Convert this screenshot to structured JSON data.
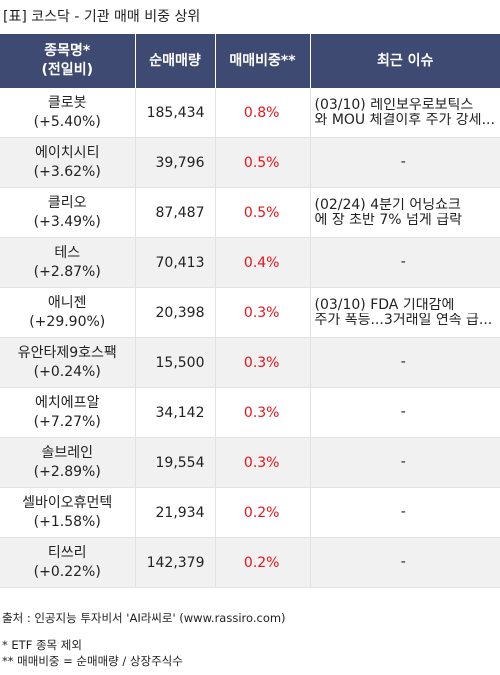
{
  "title": "[표] 코스닥 - 기관 매매 비중 상위",
  "headers": {
    "name_line1": "종목명*",
    "name_line2": "(전일비)",
    "volume": "순매매량",
    "ratio": "매매비중**",
    "issue": "최근 이슈"
  },
  "rows": [
    {
      "name": "클로봇",
      "change": "(+5.40%)",
      "volume": "185,434",
      "ratio": "0.8%",
      "issue_line1": "(03/10) 레인보우로보틱스",
      "issue_line2": "와 MOU 체결이후 주가 강세..."
    },
    {
      "name": "에이치시티",
      "change": "(+3.62%)",
      "volume": "39,796",
      "ratio": "0.5%",
      "issue_line1": "-",
      "issue_line2": ""
    },
    {
      "name": "클리오",
      "change": "(+3.49%)",
      "volume": "87,487",
      "ratio": "0.5%",
      "issue_line1": "(02/24) 4분기 어닝쇼크",
      "issue_line2": "에 장 초반 7% 넘게 급락"
    },
    {
      "name": "테스",
      "change": "(+2.87%)",
      "volume": "70,413",
      "ratio": "0.4%",
      "issue_line1": "-",
      "issue_line2": ""
    },
    {
      "name": "애니젠",
      "change": "(+29.90%)",
      "volume": "20,398",
      "ratio": "0.3%",
      "issue_line1": "(03/10) FDA 기대감에",
      "issue_line2": "주가 폭등...3거래일 연속 급..."
    },
    {
      "name": "유안타제9호스팩",
      "change": "(+0.24%)",
      "volume": "15,500",
      "ratio": "0.3%",
      "issue_line1": "-",
      "issue_line2": ""
    },
    {
      "name": "에치에프알",
      "change": "(+7.27%)",
      "volume": "34,142",
      "ratio": "0.3%",
      "issue_line1": "-",
      "issue_line2": ""
    },
    {
      "name": "솔브레인",
      "change": "(+2.89%)",
      "volume": "19,554",
      "ratio": "0.3%",
      "issue_line1": "-",
      "issue_line2": ""
    },
    {
      "name": "셀바이오휴먼텍",
      "change": "(+1.58%)",
      "volume": "21,934",
      "ratio": "0.2%",
      "issue_line1": "-",
      "issue_line2": ""
    },
    {
      "name": "티쓰리",
      "change": "(+0.22%)",
      "volume": "142,379",
      "ratio": "0.2%",
      "issue_line1": "-",
      "issue_line2": ""
    }
  ],
  "footer": {
    "source": "출처 : 인공지능 투자비서 'AI라씨로' (www.rassiro.com)",
    "note1": "* ETF 종목 제외",
    "note2": "** 매매비중 = 순매매량 / 상장주식수"
  },
  "colors": {
    "header_bg": "#3f4a72",
    "ratio_text": "#e8131a",
    "stripe_bg": "#f1f1f1"
  }
}
